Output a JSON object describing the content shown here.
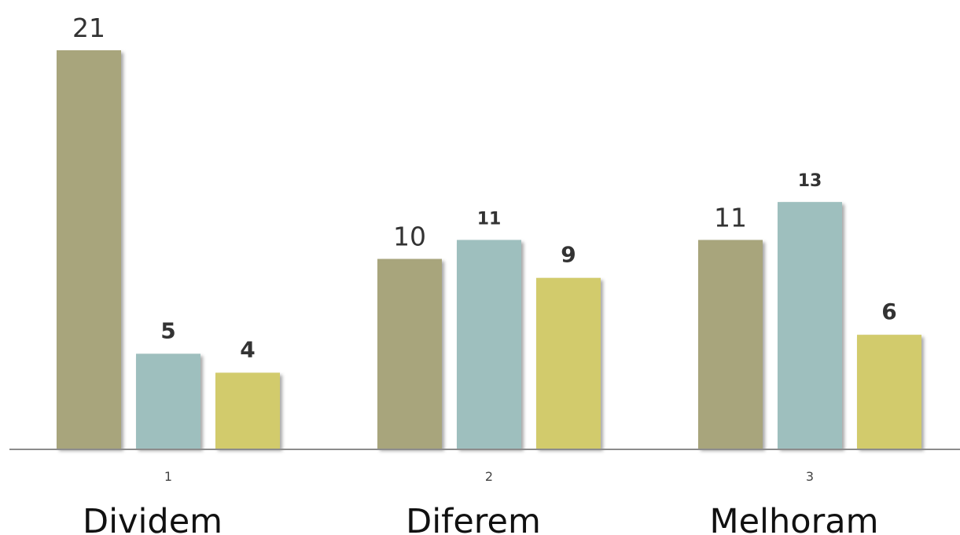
{
  "chart_data": {
    "type": "bar",
    "categories": [
      "1",
      "2",
      "3"
    ],
    "group_labels": [
      "Dividem",
      "Diferem",
      "Melhoram"
    ],
    "series": [
      {
        "values": [
          21,
          10,
          11
        ],
        "color": "#a8a57c",
        "label_style": "regular"
      },
      {
        "values": [
          5,
          11,
          13
        ],
        "color": "#9ebfbe",
        "label_style": "bold"
      },
      {
        "values": [
          4,
          9,
          6
        ],
        "color": "#d2cb6c",
        "label_style": "bold"
      }
    ],
    "ylim": [
      0,
      21
    ],
    "grid": false,
    "axis_color": "#8c8c8c"
  }
}
